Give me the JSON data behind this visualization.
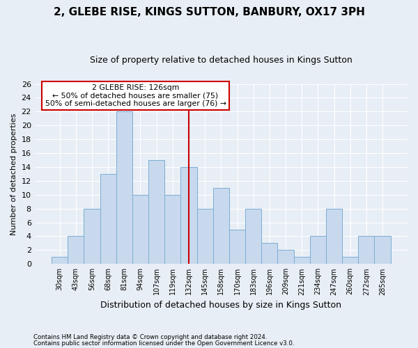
{
  "title": "2, GLEBE RISE, KINGS SUTTON, BANBURY, OX17 3PH",
  "subtitle": "Size of property relative to detached houses in Kings Sutton",
  "xlabel": "Distribution of detached houses by size in Kings Sutton",
  "ylabel": "Number of detached properties",
  "footnote1": "Contains HM Land Registry data © Crown copyright and database right 2024.",
  "footnote2": "Contains public sector information licensed under the Open Government Licence v3.0.",
  "categories": [
    "30sqm",
    "43sqm",
    "56sqm",
    "68sqm",
    "81sqm",
    "94sqm",
    "107sqm",
    "119sqm",
    "132sqm",
    "145sqm",
    "158sqm",
    "170sqm",
    "183sqm",
    "196sqm",
    "209sqm",
    "221sqm",
    "234sqm",
    "247sqm",
    "260sqm",
    "272sqm",
    "285sqm"
  ],
  "values": [
    1,
    4,
    8,
    13,
    22,
    10,
    15,
    10,
    14,
    8,
    11,
    5,
    8,
    3,
    2,
    1,
    4,
    8,
    1,
    4,
    4
  ],
  "bar_color": "#c8d9ed",
  "bar_edge_color": "#7aadd4",
  "vline_color": "#cc0000",
  "vline_x": 8,
  "annotation_title": "2 GLEBE RISE: 126sqm",
  "annotation_line1": "← 50% of detached houses are smaller (75)",
  "annotation_line2": "50% of semi-detached houses are larger (76) →",
  "annotation_box_color": "#ffffff",
  "annotation_box_edge_color": "#cc0000",
  "ylim": [
    0,
    26
  ],
  "yticks": [
    0,
    2,
    4,
    6,
    8,
    10,
    12,
    14,
    16,
    18,
    20,
    22,
    24,
    26
  ],
  "bg_color": "#e8eef5",
  "grid_color": "#ffffff",
  "title_fontsize": 11,
  "subtitle_fontsize": 9
}
